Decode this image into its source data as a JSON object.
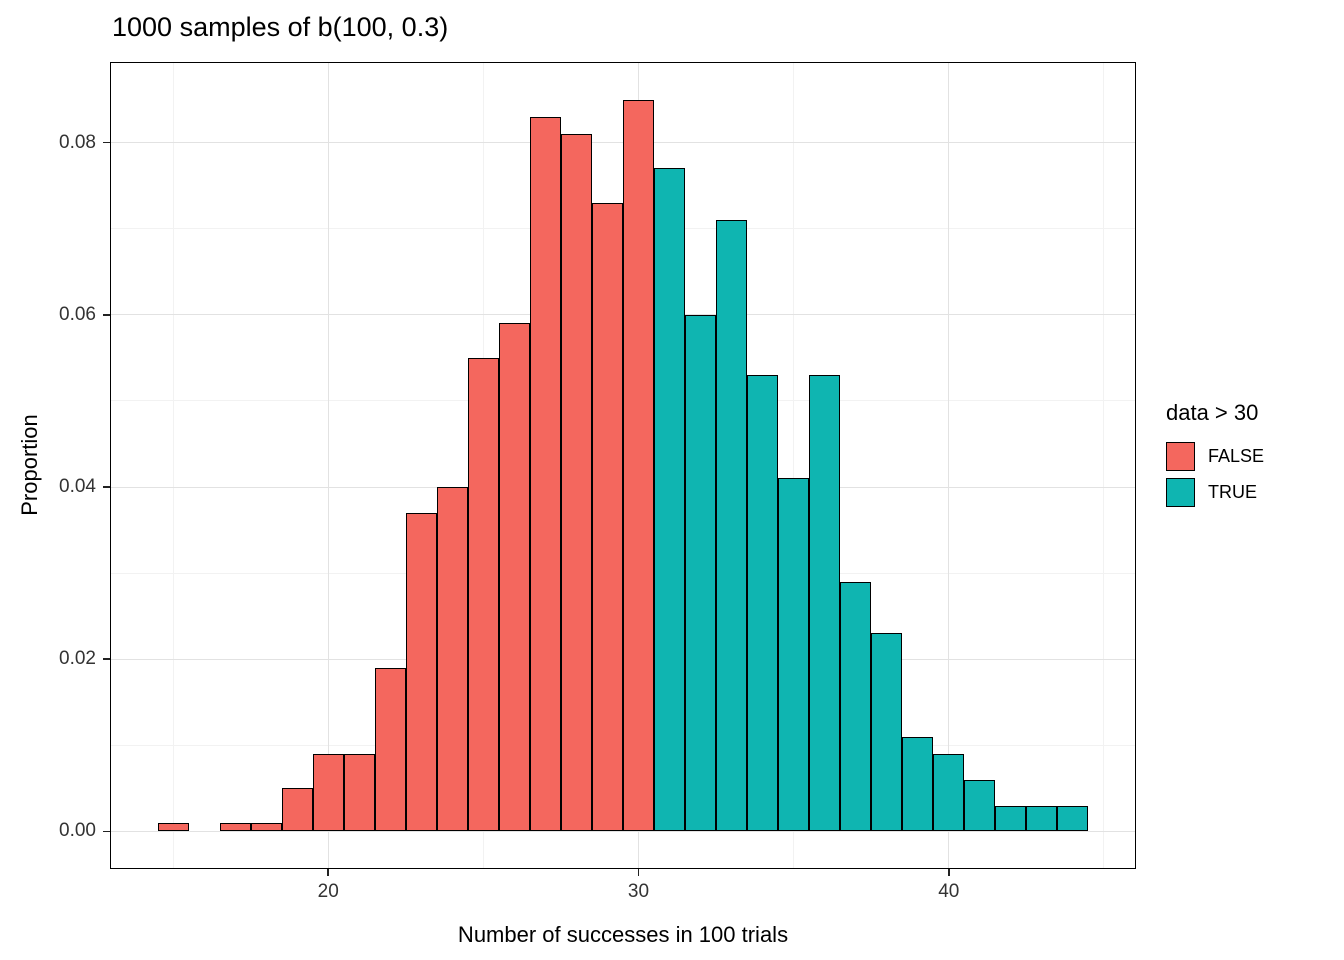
{
  "chart_data": {
    "type": "bar",
    "subtype": "histogram",
    "title": "1000 samples of b(100, 0.3)",
    "xlabel": "Number of successes in 100 trials",
    "ylabel": "Proportion",
    "xlim": [
      13,
      46
    ],
    "ylim": [
      -0.00425,
      0.08925
    ],
    "binwidth": 1,
    "grid_on": true,
    "x_ticks": [
      {
        "value": 20,
        "label": "20"
      },
      {
        "value": 30,
        "label": "30"
      },
      {
        "value": 40,
        "label": "40"
      }
    ],
    "y_ticks": [
      {
        "value": 0.0,
        "label": "0.00"
      },
      {
        "value": 0.02,
        "label": "0.02"
      },
      {
        "value": 0.04,
        "label": "0.04"
      },
      {
        "value": 0.06,
        "label": "0.06"
      },
      {
        "value": 0.08,
        "label": "0.08"
      }
    ],
    "grid": {
      "x_major": [
        20,
        30,
        40
      ],
      "x_minor": [
        15,
        25,
        35,
        45
      ],
      "y_major": [
        0.0,
        0.02,
        0.04,
        0.06,
        0.08
      ],
      "y_minor": [
        0.01,
        0.03,
        0.05,
        0.07
      ]
    },
    "colors": {
      "FALSE": "#F4675E",
      "TRUE": "#0FB5B1"
    },
    "legend": {
      "title": "data > 30",
      "position": "right",
      "entries": [
        {
          "label": "FALSE",
          "group": "FALSE",
          "color": "#F4675E"
        },
        {
          "label": "TRUE",
          "group": "TRUE",
          "color": "#0FB5B1"
        }
      ]
    },
    "bins": [
      {
        "x": 15,
        "proportion": 0.001,
        "group": "FALSE"
      },
      {
        "x": 16,
        "proportion": 0.0,
        "group": "FALSE"
      },
      {
        "x": 17,
        "proportion": 0.001,
        "group": "FALSE"
      },
      {
        "x": 18,
        "proportion": 0.001,
        "group": "FALSE"
      },
      {
        "x": 19,
        "proportion": 0.005,
        "group": "FALSE"
      },
      {
        "x": 20,
        "proportion": 0.009,
        "group": "FALSE"
      },
      {
        "x": 21,
        "proportion": 0.009,
        "group": "FALSE"
      },
      {
        "x": 22,
        "proportion": 0.019,
        "group": "FALSE"
      },
      {
        "x": 23,
        "proportion": 0.037,
        "group": "FALSE"
      },
      {
        "x": 24,
        "proportion": 0.04,
        "group": "FALSE"
      },
      {
        "x": 25,
        "proportion": 0.055,
        "group": "FALSE"
      },
      {
        "x": 26,
        "proportion": 0.059,
        "group": "FALSE"
      },
      {
        "x": 27,
        "proportion": 0.083,
        "group": "FALSE"
      },
      {
        "x": 28,
        "proportion": 0.081,
        "group": "FALSE"
      },
      {
        "x": 29,
        "proportion": 0.073,
        "group": "FALSE"
      },
      {
        "x": 30,
        "proportion": 0.085,
        "group": "FALSE"
      },
      {
        "x": 31,
        "proportion": 0.077,
        "group": "TRUE"
      },
      {
        "x": 32,
        "proportion": 0.06,
        "group": "TRUE"
      },
      {
        "x": 33,
        "proportion": 0.071,
        "group": "TRUE"
      },
      {
        "x": 34,
        "proportion": 0.053,
        "group": "TRUE"
      },
      {
        "x": 35,
        "proportion": 0.041,
        "group": "TRUE"
      },
      {
        "x": 36,
        "proportion": 0.053,
        "group": "TRUE"
      },
      {
        "x": 37,
        "proportion": 0.029,
        "group": "TRUE"
      },
      {
        "x": 38,
        "proportion": 0.023,
        "group": "TRUE"
      },
      {
        "x": 39,
        "proportion": 0.011,
        "group": "TRUE"
      },
      {
        "x": 40,
        "proportion": 0.009,
        "group": "TRUE"
      },
      {
        "x": 41,
        "proportion": 0.006,
        "group": "TRUE"
      },
      {
        "x": 42,
        "proportion": 0.003,
        "group": "TRUE"
      },
      {
        "x": 43,
        "proportion": 0.003,
        "group": "TRUE"
      },
      {
        "x": 44,
        "proportion": 0.003,
        "group": "TRUE"
      }
    ]
  }
}
